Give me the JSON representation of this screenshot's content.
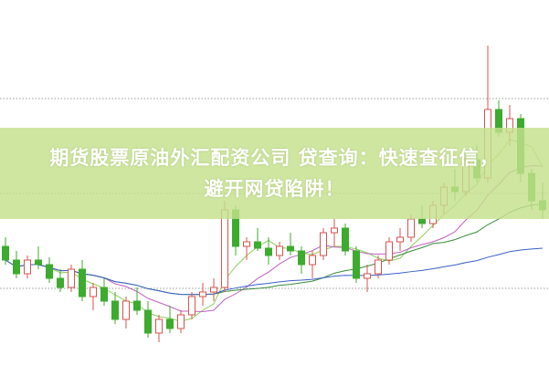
{
  "title": {
    "line1": "期货股票原油外汇配资公司 贷查询：快速查征信，",
    "line2": "避开网贷陷阱！"
  },
  "colors": {
    "up": "#d9534f",
    "down": "#3cab2e",
    "banner": "#c4e08c",
    "ma5": "#8bd15a",
    "ma10": "#c060c0",
    "ma20": "#3a8a3a",
    "ma60": "#3a5fc8",
    "grid": "#999999"
  },
  "chart_data": {
    "type": "candlestick",
    "grid": true,
    "moving_averages": [
      5,
      10,
      20,
      60
    ],
    "ohlc": [
      [
        130,
        140,
        110,
        115
      ],
      [
        115,
        125,
        95,
        100
      ],
      [
        100,
        120,
        95,
        115
      ],
      [
        115,
        130,
        105,
        110
      ],
      [
        110,
        118,
        90,
        95
      ],
      [
        95,
        105,
        80,
        85
      ],
      [
        85,
        110,
        80,
        105
      ],
      [
        105,
        115,
        70,
        75
      ],
      [
        75,
        90,
        60,
        85
      ],
      [
        85,
        95,
        65,
        70
      ],
      [
        70,
        80,
        45,
        50
      ],
      [
        50,
        75,
        40,
        70
      ],
      [
        70,
        85,
        55,
        60
      ],
      [
        60,
        70,
        30,
        35
      ],
      [
        35,
        55,
        25,
        50
      ],
      [
        50,
        65,
        35,
        40
      ],
      [
        40,
        60,
        35,
        55
      ],
      [
        55,
        80,
        50,
        75
      ],
      [
        75,
        90,
        65,
        80
      ],
      [
        80,
        95,
        70,
        85
      ],
      [
        85,
        180,
        80,
        170
      ],
      [
        170,
        175,
        120,
        130
      ],
      [
        130,
        140,
        115,
        135
      ],
      [
        135,
        150,
        125,
        128
      ],
      [
        128,
        140,
        110,
        120
      ],
      [
        120,
        135,
        115,
        130
      ],
      [
        130,
        145,
        120,
        125
      ],
      [
        125,
        130,
        100,
        110
      ],
      [
        110,
        125,
        95,
        120
      ],
      [
        120,
        150,
        115,
        145
      ],
      [
        145,
        160,
        130,
        150
      ],
      [
        150,
        155,
        120,
        125
      ],
      [
        125,
        130,
        90,
        95
      ],
      [
        95,
        110,
        80,
        100
      ],
      [
        100,
        120,
        95,
        115
      ],
      [
        115,
        140,
        110,
        135
      ],
      [
        135,
        150,
        125,
        140
      ],
      [
        140,
        165,
        135,
        160
      ],
      [
        160,
        175,
        150,
        155
      ],
      [
        155,
        180,
        150,
        175
      ],
      [
        175,
        200,
        165,
        195
      ],
      [
        195,
        215,
        180,
        190
      ],
      [
        190,
        230,
        185,
        225
      ],
      [
        225,
        240,
        200,
        205
      ],
      [
        205,
        350,
        200,
        280
      ],
      [
        280,
        290,
        250,
        255
      ],
      [
        255,
        285,
        240,
        270
      ],
      [
        270,
        275,
        200,
        210
      ],
      [
        210,
        215,
        170,
        180
      ],
      [
        180,
        200,
        160,
        170
      ]
    ]
  }
}
